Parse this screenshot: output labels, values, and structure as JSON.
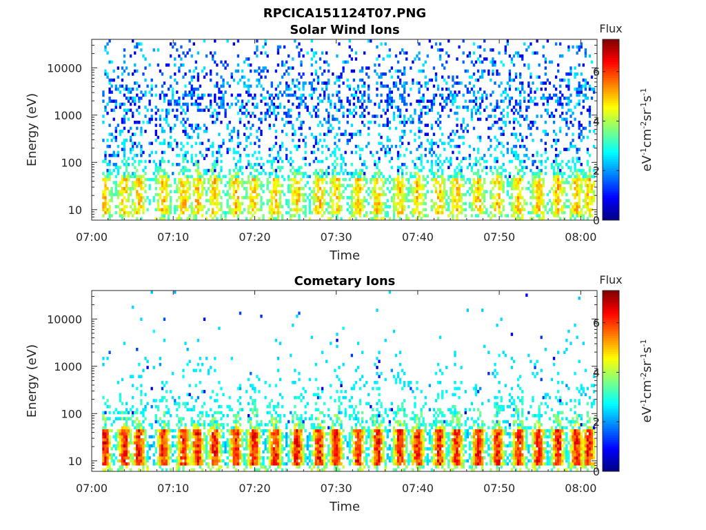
{
  "figure": {
    "title": "RPCICA151124T07.PNG"
  },
  "colorbar": {
    "label": "Flux",
    "unit_parts": [
      "eV",
      "-1",
      "cm",
      "-2",
      "sr",
      "-1",
      "s",
      "-1"
    ],
    "ticks": [
      "0",
      "2",
      "4",
      "6"
    ],
    "range": [
      0,
      7.3
    ],
    "colormap": "jet"
  },
  "chart_data": [
    {
      "type": "heatmap",
      "title": "Solar Wind Ions",
      "xlabel": "Time",
      "ylabel": "Energy (eV)",
      "x_ticks": [
        "07:00",
        "07:10",
        "07:20",
        "07:30",
        "07:40",
        "07:50",
        "08:00"
      ],
      "y_ticks": [
        "10",
        "100",
        "1000",
        "10000"
      ],
      "y_scale": "log",
      "ylim": [
        6,
        40000
      ],
      "xlim": [
        "07:00",
        "08:02"
      ],
      "grid": false,
      "description_of_values": "Sparse low flux (1-3) across 100-30000 eV; bursts roughly every 2-3 min near 20-50 eV with flux ~4-5.5",
      "bursts_minutes": [
        1.6,
        4.0,
        5.8,
        8.8,
        11.3,
        13.0,
        15.1,
        17.7,
        19.9,
        22.5,
        25.2,
        27.9,
        30.0,
        32.7,
        35.1,
        37.8,
        40.0,
        42.6,
        44.8,
        47.4,
        49.8,
        52.4,
        54.8,
        57.2,
        59.5,
        61.0
      ],
      "peak_flux": 5.5
    },
    {
      "type": "heatmap",
      "title": "Cometary Ions",
      "xlabel": "Time",
      "ylabel": "Energy (eV)",
      "x_ticks": [
        "07:00",
        "07:10",
        "07:20",
        "07:30",
        "07:40",
        "07:50",
        "08:00"
      ],
      "y_ticks": [
        "10",
        "100",
        "1000",
        "10000"
      ],
      "y_scale": "log",
      "ylim": [
        6,
        40000
      ],
      "xlim": [
        "07:00",
        "08:02"
      ],
      "grid": false,
      "description_of_values": "Periodic bursts at 10-50 eV with flux up to ~7, tails extending to ~500 eV; sparse low flux points above",
      "bursts_minutes": [
        1.6,
        4.0,
        5.8,
        8.8,
        11.3,
        13.0,
        15.1,
        17.7,
        19.9,
        22.5,
        25.2,
        27.9,
        30.0,
        32.7,
        35.1,
        37.8,
        40.0,
        42.6,
        44.8,
        47.4,
        49.8,
        52.4,
        54.8,
        57.2,
        59.5,
        61.0
      ],
      "peak_flux": 7.0
    }
  ]
}
